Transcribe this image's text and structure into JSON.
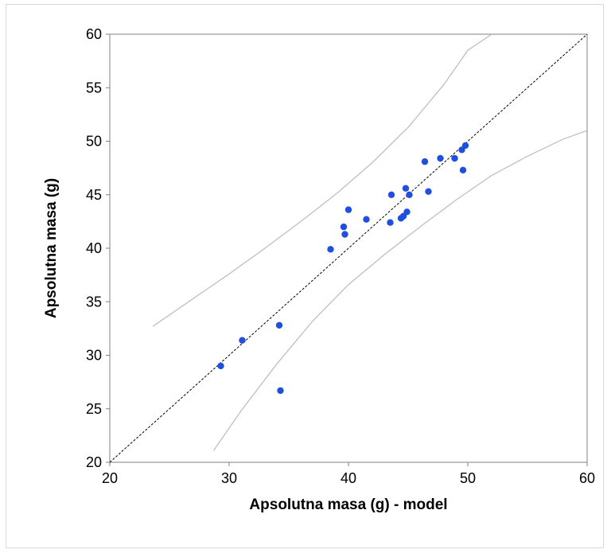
{
  "chart_data": {
    "type": "scatter",
    "xlabel": "Apsolutna masa (g) - model",
    "ylabel": "Apsolutna masa (g)",
    "xlim": [
      20,
      60
    ],
    "ylim": [
      20,
      60
    ],
    "x_ticks": [
      20,
      30,
      40,
      50,
      60
    ],
    "y_ticks": [
      20,
      25,
      30,
      35,
      40,
      45,
      50,
      55,
      60
    ],
    "grid": false,
    "legend": "none",
    "point_color": "#1f4fe0",
    "reference_line": {
      "style": "dashed",
      "color": "#000000",
      "from": [
        20,
        20
      ],
      "to": [
        60,
        60
      ]
    },
    "band_color": "#bfbfbf",
    "series": [
      {
        "points": [
          [
            29.3,
            29.0
          ],
          [
            31.1,
            31.4
          ],
          [
            34.2,
            32.8
          ],
          [
            34.3,
            26.7
          ],
          [
            38.5,
            39.9
          ],
          [
            39.6,
            42.0
          ],
          [
            39.7,
            41.3
          ],
          [
            40.0,
            43.6
          ],
          [
            41.5,
            42.7
          ],
          [
            43.5,
            42.4
          ],
          [
            43.6,
            45.0
          ],
          [
            44.4,
            42.8
          ],
          [
            44.6,
            43.0
          ],
          [
            44.8,
            45.6
          ],
          [
            44.9,
            43.4
          ],
          [
            45.1,
            45.0
          ],
          [
            46.4,
            48.1
          ],
          [
            46.7,
            45.3
          ],
          [
            47.7,
            48.4
          ],
          [
            48.9,
            48.4
          ],
          [
            49.5,
            49.2
          ],
          [
            49.6,
            47.3
          ],
          [
            49.8,
            49.6
          ]
        ]
      }
    ],
    "upper_band": [
      [
        23.6,
        32.7
      ],
      [
        27,
        35.3
      ],
      [
        30,
        37.6
      ],
      [
        33,
        40.0
      ],
      [
        36,
        42.5
      ],
      [
        39,
        45.1
      ],
      [
        42,
        48.0
      ],
      [
        45,
        51.3
      ],
      [
        48,
        55.3
      ],
      [
        50,
        58.5
      ],
      [
        52.0,
        60.0
      ]
    ],
    "lower_band": [
      [
        28.7,
        21.1
      ],
      [
        31,
        24.8
      ],
      [
        34,
        29.2
      ],
      [
        37,
        33.2
      ],
      [
        40,
        36.6
      ],
      [
        43,
        39.4
      ],
      [
        46,
        42.0
      ],
      [
        49,
        44.5
      ],
      [
        52,
        46.8
      ],
      [
        55,
        48.6
      ],
      [
        58,
        50.2
      ],
      [
        60,
        51.0
      ]
    ]
  }
}
